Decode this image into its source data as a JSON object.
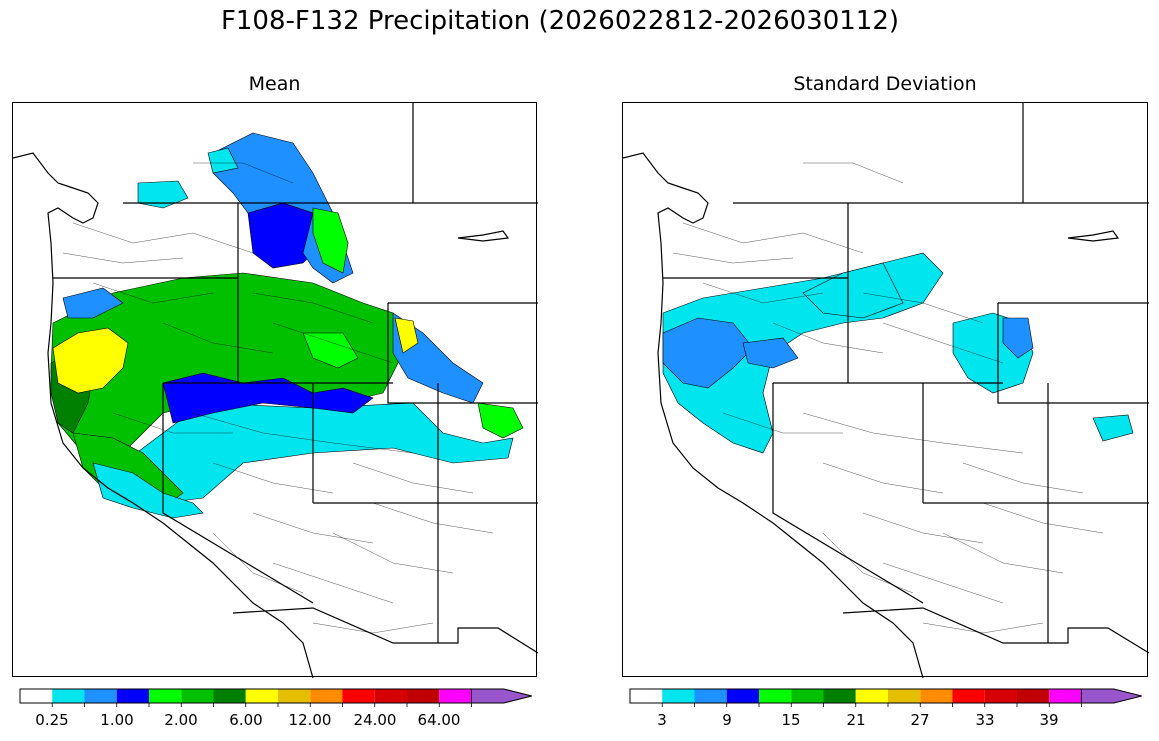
{
  "title": "F108-F132 Precipitation (2026022812-2026030112)",
  "panels": [
    {
      "title": "Mean"
    },
    {
      "title": "Standard Deviation"
    }
  ],
  "colorbar_colors": [
    "#ffffff",
    "#00e5ee",
    "#1e90ff",
    "#0000ff",
    "#00ff00",
    "#00c000",
    "#008000",
    "#ffff00",
    "#e5be00",
    "#ff8c00",
    "#ff0000",
    "#d70000",
    "#c00000",
    "#ff00ff",
    "#9955cc"
  ],
  "colorbars": [
    {
      "labels": [
        "0.25",
        "1.00",
        "2.00",
        "6.00",
        "12.00",
        "24.00",
        "64.00"
      ]
    },
    {
      "labels": [
        "3",
        "9",
        "15",
        "21",
        "27",
        "33",
        "39"
      ]
    }
  ],
  "legend_values": {
    "mean": [
      "0.25",
      "1.00",
      "2.00",
      "6.00",
      "12.00",
      "24.00",
      "64.00"
    ],
    "stdev": [
      "3",
      "9",
      "15",
      "21",
      "27",
      "33",
      "39"
    ]
  }
}
